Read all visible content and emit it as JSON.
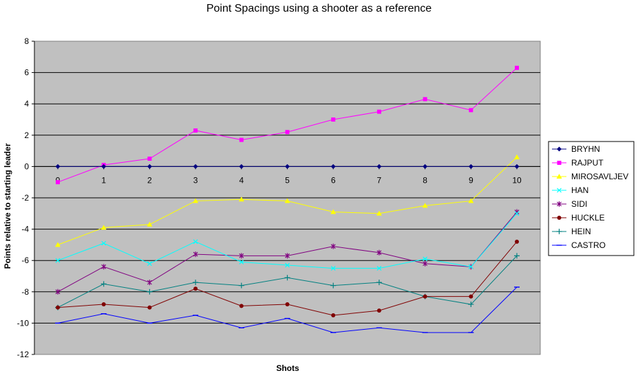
{
  "chart_data": {
    "type": "line",
    "title": "Point Spacings using a shooter as a reference",
    "xlabel": "Shots",
    "ylabel": "Points relative to starting leader",
    "x": [
      0,
      1,
      2,
      3,
      4,
      5,
      6,
      7,
      8,
      9,
      10
    ],
    "ylim": [
      -12,
      8
    ],
    "yticks": [
      -12,
      -10,
      -8,
      -6,
      -4,
      -2,
      0,
      2,
      4,
      6,
      8
    ],
    "grid": true,
    "legend_position": "right",
    "plot_background": "#c0c0c0",
    "series": [
      {
        "name": "BRYHN",
        "color": "#000080",
        "marker": "diamond",
        "values": [
          0,
          0,
          0,
          0,
          0,
          0,
          0,
          0,
          0,
          0,
          0
        ]
      },
      {
        "name": "RAJPUT",
        "color": "#ff00ff",
        "marker": "square",
        "values": [
          -1.0,
          0.1,
          0.5,
          2.3,
          1.7,
          2.2,
          3.0,
          3.5,
          4.3,
          3.6,
          6.3
        ]
      },
      {
        "name": "MIROSAVLJEV",
        "color": "#ffff00",
        "marker": "triangle",
        "values": [
          -5.0,
          -3.9,
          -3.7,
          -2.2,
          -2.1,
          -2.2,
          -2.9,
          -3.0,
          -2.5,
          -2.2,
          0.6
        ]
      },
      {
        "name": "HAN",
        "color": "#00ffff",
        "marker": "x",
        "values": [
          -6.0,
          -4.9,
          -6.2,
          -4.8,
          -6.1,
          -6.3,
          -6.5,
          -6.5,
          -5.9,
          -6.4,
          -3.0
        ]
      },
      {
        "name": "SIDI",
        "color": "#800080",
        "marker": "star",
        "values": [
          -8.0,
          -6.4,
          -7.4,
          -5.6,
          -5.7,
          -5.7,
          -5.1,
          -5.5,
          -6.2,
          -6.4,
          -2.9
        ]
      },
      {
        "name": "HUCKLE",
        "color": "#800000",
        "marker": "circle",
        "values": [
          -9.0,
          -8.8,
          -9.0,
          -7.8,
          -8.9,
          -8.8,
          -9.5,
          -9.2,
          -8.3,
          -8.3,
          -4.8
        ]
      },
      {
        "name": "HEIN",
        "color": "#008080",
        "marker": "plus",
        "values": [
          -9.0,
          -7.5,
          -8.0,
          -7.4,
          -7.6,
          -7.1,
          -7.6,
          -7.4,
          -8.3,
          -8.8,
          -5.7
        ]
      },
      {
        "name": "CASTRO",
        "color": "#0000ff",
        "marker": "dash",
        "values": [
          -10.0,
          -9.4,
          -10.0,
          -9.5,
          -10.3,
          -9.7,
          -10.6,
          -10.3,
          -10.6,
          -10.6,
          -7.7
        ]
      }
    ]
  }
}
